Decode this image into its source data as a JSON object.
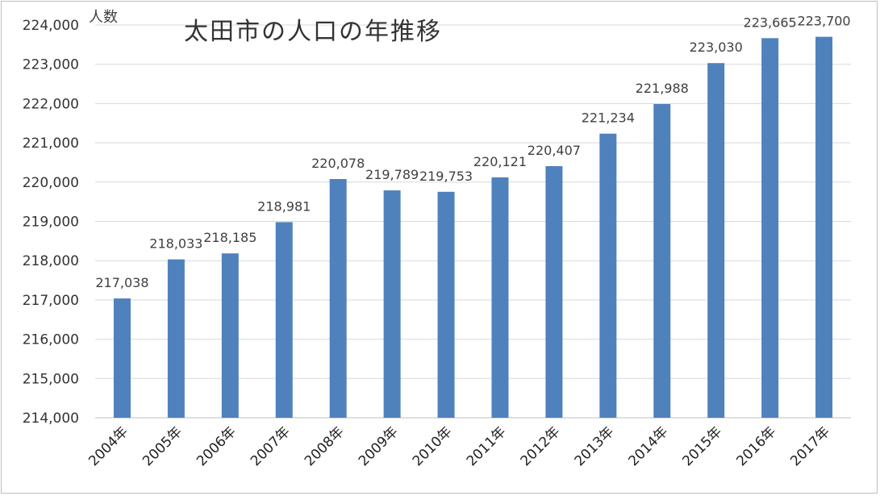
{
  "chart_data": {
    "type": "bar",
    "title": "太田市の人口の年推移",
    "ylabel": "人数",
    "xlabel": "",
    "categories": [
      "2004年",
      "2005年",
      "2006年",
      "2007年",
      "2008年",
      "2009年",
      "2010年",
      "2011年",
      "2012年",
      "2013年",
      "2014年",
      "2015年",
      "2016年",
      "2017年"
    ],
    "values": [
      217038,
      218033,
      218185,
      218981,
      220078,
      219789,
      219753,
      220121,
      220407,
      221234,
      221988,
      223030,
      223665,
      223700
    ],
    "value_labels": [
      "217,038",
      "218,033",
      "218,185",
      "218,981",
      "220,078",
      "219,789",
      "219,753",
      "220,121",
      "220,407",
      "221,234",
      "221,988",
      "223,030",
      "223,665",
      "223,700"
    ],
    "ylim": [
      214000,
      224000
    ],
    "yticks": [
      214000,
      215000,
      216000,
      217000,
      218000,
      219000,
      220000,
      221000,
      222000,
      223000,
      224000
    ],
    "ytick_labels": [
      "214,000",
      "215,000",
      "216,000",
      "217,000",
      "218,000",
      "219,000",
      "220,000",
      "221,000",
      "222,000",
      "223,000",
      "224,000"
    ],
    "grid": true,
    "legend": "none",
    "bar_color": "#4f81bd",
    "grid_color": "#d9d9d9"
  }
}
